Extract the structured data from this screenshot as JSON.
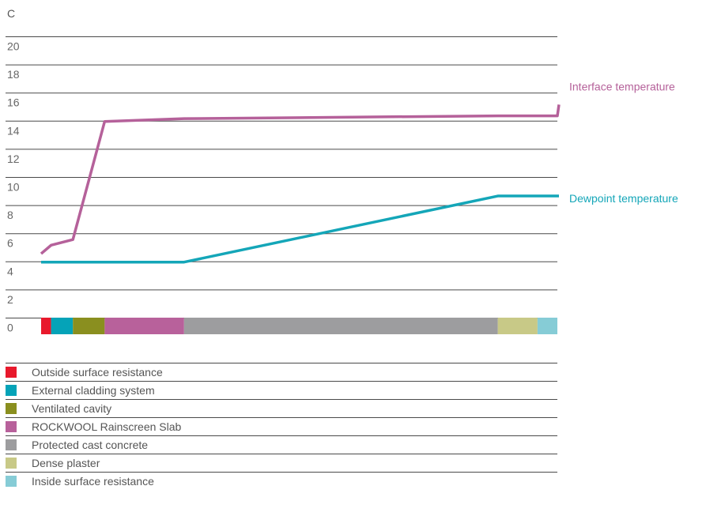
{
  "chart_data": {
    "type": "line",
    "ylabel": "C",
    "ylim": [
      0,
      21
    ],
    "y_ticks": [
      0,
      2,
      4,
      6,
      8,
      10,
      12,
      14,
      16,
      18,
      20
    ],
    "x_positions": [
      0,
      0.5,
      1.6,
      3.2,
      7.2,
      23,
      26,
      29.5
    ],
    "series": [
      {
        "name": "Interface temperature",
        "color": "#b5619a",
        "values": [
          5.7,
          6.3,
          6.7,
          15.1,
          15.3,
          15.5,
          15.5,
          16.3
        ]
      },
      {
        "name": "Dewpoint temperature",
        "color": "#14a6b8",
        "values": [
          5.1,
          5.1,
          5.1,
          5.1,
          5.1,
          9.8,
          9.8,
          9.8
        ]
      }
    ],
    "layers": [
      {
        "name": "Outside surface resistance",
        "color": "#e8192c",
        "start": 0,
        "end": 0.5
      },
      {
        "name": "External cladding system",
        "color": "#05a3b8",
        "start": 0.5,
        "end": 1.6
      },
      {
        "name": "Ventilated cavity",
        "color": "#8a8f1f",
        "start": 1.6,
        "end": 3.2
      },
      {
        "name": "ROCKWOOL Rainscreen Slab",
        "color": "#b8619b",
        "start": 3.2,
        "end": 7.2
      },
      {
        "name": "Protected cast concrete",
        "color": "#9d9d9f",
        "start": 7.2,
        "end": 23
      },
      {
        "name": "Dense plaster",
        "color": "#c8c987",
        "start": 23,
        "end": 25
      },
      {
        "name": "Inside surface resistance",
        "color": "#86ccd6",
        "start": 25,
        "end": 26
      }
    ],
    "grid": true
  }
}
